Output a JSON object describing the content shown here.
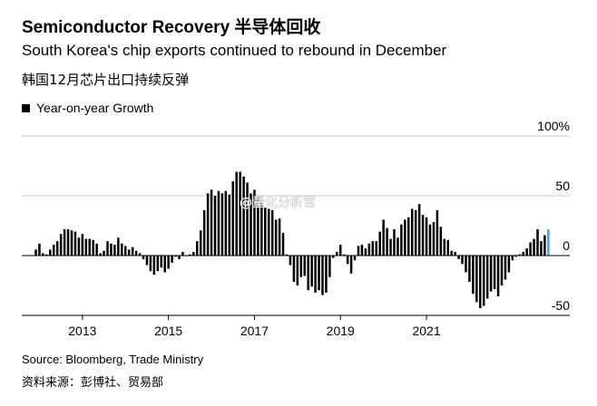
{
  "header": {
    "title": "Semiconductor Recovery 半导体回收",
    "subtitle": "South Korea's chip exports continued to rebound in December",
    "subtitle_cn": "韩国12月芯片出口持续反弹"
  },
  "legend": {
    "label": "Year-on-year Growth"
  },
  "footer": {
    "source": "Source: Bloomberg, Trade Ministry",
    "source_cn": "资料来源：彭博社、贸易部"
  },
  "watermark": "@量化分析官",
  "colors": {
    "bars": "#000000",
    "highlight": "#4a9fe6",
    "grid": "#cccccc",
    "axis": "#000000"
  },
  "chart_data": {
    "type": "bar",
    "ylim": [
      -50,
      100
    ],
    "y_ticks": [
      -50,
      0,
      50,
      100
    ],
    "y_tick_labels": [
      "-50",
      "0",
      "50",
      "100%"
    ],
    "x_tick_labels": [
      {
        "label": "2013",
        "index": 13
      },
      {
        "label": "2015",
        "index": 37
      },
      {
        "label": "2017",
        "index": 61
      },
      {
        "label": "2019",
        "index": 85
      },
      {
        "label": "2021",
        "index": 109
      }
    ],
    "highlight_index": 143,
    "series": [
      {
        "values": [
          5,
          10,
          2,
          1,
          5,
          9,
          12,
          18,
          22,
          22,
          21,
          20,
          15,
          18,
          14,
          14,
          13,
          10,
          2,
          4,
          12,
          10,
          9,
          15,
          10,
          8,
          5,
          7,
          4,
          2,
          -3,
          -8,
          -13,
          -16,
          -13,
          -10,
          -14,
          -11,
          -6,
          -1,
          -3,
          3,
          0,
          1,
          3,
          12,
          21,
          38,
          52,
          55,
          50,
          54,
          52,
          54,
          51,
          62,
          70,
          70,
          66,
          61,
          52,
          55,
          48,
          45,
          40,
          39,
          38,
          30,
          31,
          19,
          1,
          -8,
          -22,
          -25,
          -18,
          -17,
          -29,
          -26,
          -31,
          -29,
          -33,
          -31,
          -18,
          -2,
          3,
          9,
          1,
          -7,
          -15,
          -4,
          8,
          9,
          6,
          10,
          12,
          12,
          20,
          30,
          23,
          14,
          22,
          15,
          26,
          30,
          32,
          39,
          38,
          43,
          34,
          32,
          26,
          28,
          38,
          24,
          14,
          13,
          4,
          3,
          -3,
          -7,
          -14,
          -22,
          -32,
          -39,
          -44,
          -42,
          -36,
          -30,
          -28,
          -34,
          -25,
          -20,
          -14,
          -4,
          -1,
          1,
          3,
          6,
          11,
          14,
          22,
          12,
          17,
          22
        ]
      }
    ]
  }
}
